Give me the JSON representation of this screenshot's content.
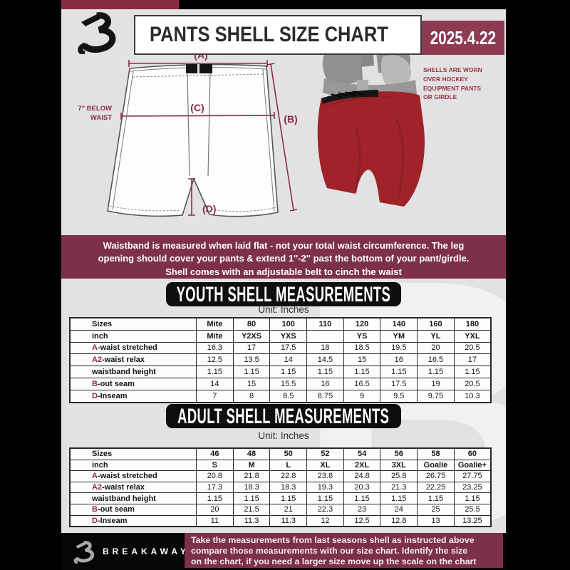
{
  "header": {
    "title": "PANTS SHELL SIZE CHART",
    "date": "2025.4.22",
    "logo_letter": "B"
  },
  "diagram": {
    "label_a": "(A)",
    "label_b": "(B)",
    "label_c": "(C)",
    "label_d": "(D)",
    "waist_note_line1": "7'' BELOW",
    "waist_note_line2": "WAIST"
  },
  "photo_note": {
    "lines": [
      "SHELLS ARE WORN",
      "OVER HOCKEY",
      "EQUIPMENT PANTS",
      "OR GIRDLE"
    ]
  },
  "banner": {
    "lines": [
      "Waistband is measured when laid flat - not your total waist circumference. The leg",
      "opening should cover your pants & extend 1''-2'' past the bottom of your pant/girdle.",
      "Shell comes with an adjustable belt to cinch the waist"
    ]
  },
  "youth": {
    "title": "YOUTH SHELL MEASUREMENTS",
    "unit": "Unit: Inches",
    "table": {
      "rows": [
        {
          "prefix": "",
          "label": "Sizes",
          "bold": true,
          "cells": [
            "Mite",
            "80",
            "100",
            "110",
            "120",
            "140",
            "160",
            "180"
          ]
        },
        {
          "prefix": "",
          "label": "inch",
          "bold": true,
          "cells": [
            "Mite",
            "Y2XS",
            "YXS",
            "",
            "YS",
            "YM",
            "YL",
            "YXL"
          ]
        },
        {
          "prefix": "A",
          "label": "-waist stretched",
          "bold": false,
          "cells": [
            "16.3",
            "17",
            "17.5",
            "18",
            "18.5",
            "19.5",
            "20",
            "20.5"
          ]
        },
        {
          "prefix": "A2",
          "label": "-waist relax",
          "bold": false,
          "cells": [
            "12.5",
            "13.5",
            "14",
            "14.5",
            "15",
            "16",
            "16.5",
            "17"
          ]
        },
        {
          "prefix": "",
          "label": "waistband height",
          "bold": false,
          "cells": [
            "1.15",
            "1.15",
            "1.15",
            "1.15",
            "1.15",
            "1.15",
            "1.15",
            "1.15"
          ]
        },
        {
          "prefix": "B",
          "label": "-out seam",
          "bold": false,
          "cells": [
            "14",
            "15",
            "15.5",
            "16",
            "16.5",
            "17.5",
            "19",
            "20.5"
          ]
        },
        {
          "prefix": "D",
          "label": "-Inseam",
          "bold": false,
          "cells": [
            "7",
            "8",
            "8.5",
            "8.75",
            "9",
            "9.5",
            "9.75",
            "10.3"
          ]
        }
      ]
    }
  },
  "adult": {
    "title": "ADULT SHELL MEASUREMENTS",
    "unit": "Unit: Inches",
    "table": {
      "rows": [
        {
          "prefix": "",
          "label": "Sizes",
          "bold": true,
          "cells": [
            "46",
            "48",
            "50",
            "52",
            "54",
            "56",
            "58",
            "60"
          ]
        },
        {
          "prefix": "",
          "label": "inch",
          "bold": true,
          "cells": [
            "S",
            "M",
            "L",
            "XL",
            "2XL",
            "3XL",
            "Goalie",
            "Goalie+"
          ]
        },
        {
          "prefix": "A",
          "label": "-waist stretched",
          "bold": false,
          "cells": [
            "20.8",
            "21.8",
            "22.8",
            "23.8",
            "24.8",
            "25.8",
            "26.75",
            "27.75"
          ]
        },
        {
          "prefix": "A2",
          "label": "-waist relax",
          "bold": false,
          "cells": [
            "17.3",
            "18.3",
            "18.3",
            "19.3",
            "20.3",
            "21.3",
            "22.25",
            "23.25"
          ]
        },
        {
          "prefix": "",
          "label": "waistband height",
          "bold": false,
          "cells": [
            "1.15",
            "1.15",
            "1.15",
            "1.15",
            "1.15",
            "1.15",
            "1.15",
            "1.15"
          ]
        },
        {
          "prefix": "B",
          "label": "-out seam",
          "bold": false,
          "cells": [
            "20",
            "21.5",
            "21",
            "22.3",
            "23",
            "24",
            "25",
            "25.5"
          ]
        },
        {
          "prefix": "D",
          "label": "-Inseam",
          "bold": false,
          "cells": [
            "11",
            "11.3",
            "11.3",
            "12",
            "12.5",
            "12.8",
            "13",
            "13.25"
          ]
        }
      ]
    }
  },
  "footer": {
    "brand": "BREAKAWAY",
    "lines": [
      "Take the measurements from last seasons shell as instructed above",
      "compare those measurements  with our size chart. Identify the size",
      "on the chart, if you need a larger size move up the scale on the chart"
    ]
  },
  "colors": {
    "maroon_accent": "#8e2c44",
    "banner_maroon": "#7d3049",
    "badge_maroon": "#8d3a52",
    "page_background": "#e2e2e4",
    "pants_red": "#9f2329"
  }
}
